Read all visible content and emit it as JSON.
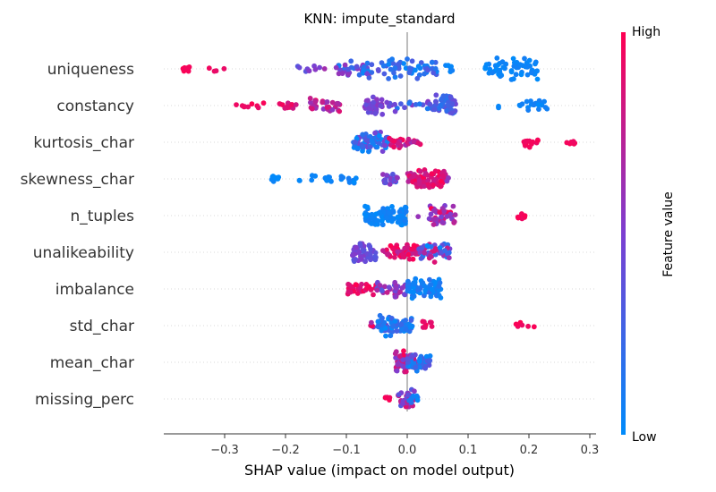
{
  "chart_data": {
    "type": "scatter",
    "subtype": "shap-beeswarm",
    "title": "KNN: impute_standard",
    "xlabel": "SHAP value (impact on model output)",
    "xlim": [
      -0.395,
      0.31
    ],
    "xticks": [
      -0.3,
      -0.2,
      -0.1,
      0.0,
      0.1,
      0.2,
      0.3
    ],
    "xtick_labels": [
      "−0.3",
      "−0.2",
      "−0.1",
      "0.0",
      "0.1",
      "0.2",
      "0.3"
    ],
    "colorbar": {
      "label": "Feature value",
      "high_label": "High",
      "low_label": "Low",
      "low_color": "#008bfb",
      "mid_color": "#7c3fd1",
      "high_color": "#ff0052"
    },
    "grid": false,
    "features": [
      {
        "name": "uniqueness",
        "clusters": [
          {
            "x": [
              -0.37,
              -0.355
            ],
            "n": 8,
            "v": [
              0.95,
              1
            ]
          },
          {
            "x": [
              -0.33,
              -0.3
            ],
            "n": 4,
            "v": [
              0.9,
              1
            ]
          },
          {
            "x": [
              -0.2,
              -0.12
            ],
            "n": 9,
            "v": [
              0.35,
              0.7
            ]
          },
          {
            "x": [
              -0.12,
              -0.04
            ],
            "n": 40,
            "v": [
              0.0,
              0.6
            ]
          },
          {
            "x": [
              -0.04,
              0.05
            ],
            "n": 55,
            "v": [
              0.0,
              0.35
            ]
          },
          {
            "x": [
              0.05,
              0.08
            ],
            "n": 6,
            "v": [
              0.0,
              0.1
            ]
          },
          {
            "x": [
              0.128,
              0.215
            ],
            "n": 60,
            "v": [
              0.0,
              0.08
            ]
          }
        ]
      },
      {
        "name": "constancy",
        "clusters": [
          {
            "x": [
              -0.295,
              -0.25
            ],
            "n": 3,
            "v": [
              0.85,
              1
            ]
          },
          {
            "x": [
              -0.27,
              -0.22
            ],
            "n": 6,
            "v": [
              0.9,
              1
            ]
          },
          {
            "x": [
              -0.21,
              -0.18
            ],
            "n": 12,
            "v": [
              0.8,
              1
            ]
          },
          {
            "x": [
              -0.16,
              -0.11
            ],
            "n": 30,
            "v": [
              0.55,
              0.9
            ]
          },
          {
            "x": [
              -0.07,
              -0.04
            ],
            "n": 40,
            "v": [
              0.35,
              0.6
            ]
          },
          {
            "x": [
              -0.04,
              0.04
            ],
            "n": 20,
            "v": [
              0.1,
              0.6
            ]
          },
          {
            "x": [
              0.04,
              0.08
            ],
            "n": 55,
            "v": [
              0.15,
              0.45
            ]
          },
          {
            "x": [
              0.15,
              0.15
            ],
            "n": 2,
            "v": [
              0,
              0.05
            ]
          },
          {
            "x": [
              0.18,
              0.23
            ],
            "n": 20,
            "v": [
              0.0,
              0.1
            ]
          }
        ]
      },
      {
        "name": "kurtosis_char",
        "clusters": [
          {
            "x": [
              -0.09,
              -0.03
            ],
            "n": 75,
            "v": [
              0.0,
              0.5
            ]
          },
          {
            "x": [
              -0.03,
              0.0
            ],
            "n": 20,
            "v": [
              0.6,
              1.0
            ]
          },
          {
            "x": [
              0.0,
              0.022
            ],
            "n": 10,
            "v": [
              0.6,
              1.0
            ]
          },
          {
            "x": [
              0.19,
              0.215
            ],
            "n": 14,
            "v": [
              0.9,
              1
            ]
          },
          {
            "x": [
              0.26,
              0.277
            ],
            "n": 10,
            "v": [
              0.9,
              1
            ]
          }
        ]
      },
      {
        "name": "skewness_char",
        "clusters": [
          {
            "x": [
              -0.225,
              -0.21
            ],
            "n": 10,
            "v": [
              0,
              0.06
            ]
          },
          {
            "x": [
              -0.18,
              -0.15
            ],
            "n": 5,
            "v": [
              0,
              0.06
            ]
          },
          {
            "x": [
              -0.14,
              -0.12
            ],
            "n": 12,
            "v": [
              0,
              0.06
            ]
          },
          {
            "x": [
              -0.11,
              -0.08
            ],
            "n": 12,
            "v": [
              0,
              0.1
            ]
          },
          {
            "x": [
              -0.04,
              -0.015
            ],
            "n": 18,
            "v": [
              0.2,
              0.6
            ]
          },
          {
            "x": [
              0.0,
              0.015
            ],
            "n": 20,
            "v": [
              0.7,
              1.0
            ]
          },
          {
            "x": [
              0.015,
              0.065
            ],
            "n": 65,
            "v": [
              0.75,
              1.0
            ]
          },
          {
            "x": [
              0.065,
              0.072
            ],
            "n": 2,
            "v": [
              0.5,
              0.6
            ]
          }
        ]
      },
      {
        "name": "n_tuples",
        "clusters": [
          {
            "x": [
              -0.07,
              0.0
            ],
            "n": 90,
            "v": [
              0.0,
              0.1
            ]
          },
          {
            "x": [
              0.018,
              0.018
            ],
            "n": 1,
            "v": [
              0.6,
              0.6
            ]
          },
          {
            "x": [
              0.035,
              0.08
            ],
            "n": 45,
            "v": [
              0.45,
              1.0
            ]
          },
          {
            "x": [
              0.18,
              0.195
            ],
            "n": 8,
            "v": [
              0.9,
              1
            ]
          }
        ]
      },
      {
        "name": "unalikeability",
        "clusters": [
          {
            "x": [
              -0.09,
              -0.05
            ],
            "n": 50,
            "v": [
              0.3,
              0.55
            ]
          },
          {
            "x": [
              -0.04,
              0.0
            ],
            "n": 30,
            "v": [
              0.7,
              1.0
            ]
          },
          {
            "x": [
              0.0,
              0.018
            ],
            "n": 25,
            "v": [
              0.7,
              1.0
            ]
          },
          {
            "x": [
              0.018,
              0.07
            ],
            "n": 50,
            "v": [
              0.0,
              0.9
            ]
          }
        ]
      },
      {
        "name": "imbalance",
        "clusters": [
          {
            "x": [
              -0.1,
              -0.05
            ],
            "n": 30,
            "v": [
              0.8,
              1.0
            ]
          },
          {
            "x": [
              -0.05,
              0.0
            ],
            "n": 35,
            "v": [
              0.3,
              0.8
            ]
          },
          {
            "x": [
              0.0,
              0.055
            ],
            "n": 70,
            "v": [
              0.0,
              0.2
            ]
          }
        ]
      },
      {
        "name": "std_char",
        "clusters": [
          {
            "x": [
              -0.06,
              -0.03
            ],
            "n": 10,
            "v": [
              0.4,
              1.0
            ]
          },
          {
            "x": [
              -0.05,
              0.01
            ],
            "n": 70,
            "v": [
              0.0,
              0.3
            ]
          },
          {
            "x": [
              0.025,
              0.042
            ],
            "n": 8,
            "v": [
              0.85,
              1
            ]
          },
          {
            "x": [
              0.17,
              0.21
            ],
            "n": 6,
            "v": [
              0.9,
              1
            ]
          }
        ]
      },
      {
        "name": "mean_char",
        "clusters": [
          {
            "x": [
              -0.02,
              0.015
            ],
            "n": 75,
            "v": [
              0.4,
              1.0
            ]
          },
          {
            "x": [
              0.0,
              0.04
            ],
            "n": 45,
            "v": [
              0.0,
              0.4
            ]
          }
        ]
      },
      {
        "name": "missing_perc",
        "clusters": [
          {
            "x": [
              -0.04,
              -0.02
            ],
            "n": 5,
            "v": [
              0.85,
              1
            ]
          },
          {
            "x": [
              -0.015,
              0.012
            ],
            "n": 40,
            "v": [
              0.3,
              0.9
            ]
          },
          {
            "x": [
              0.0,
              0.02
            ],
            "n": 8,
            "v": [
              0.0,
              0.2
            ]
          }
        ]
      }
    ]
  }
}
